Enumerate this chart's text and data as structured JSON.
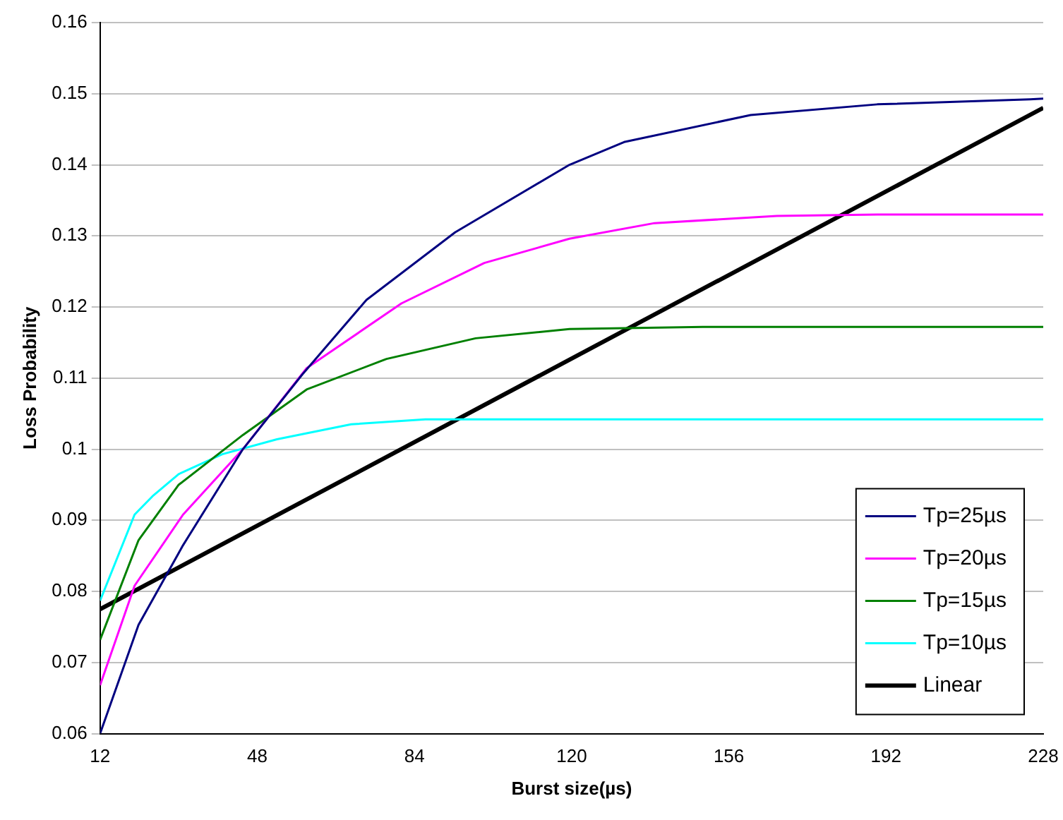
{
  "chart_data": {
    "type": "line",
    "xlabel": "Burst size(µs)",
    "ylabel": "Loss Probability",
    "xlim": [
      12,
      228
    ],
    "xticks": [
      12,
      48,
      84,
      120,
      156,
      192,
      228
    ],
    "ylim": [
      0.06,
      0.16
    ],
    "yticks": [
      0.06,
      0.07,
      0.08,
      0.09,
      0.1,
      0.11,
      0.12,
      0.13,
      0.14,
      0.15,
      0.16
    ],
    "grid": "y",
    "legend": "bottom right",
    "marker": "none",
    "line_style": "solid",
    "series": [
      {
        "name": "Tp=25µs",
        "color": "#000080",
        "x": [
          12,
          20.8,
          31,
          44.7,
          58.3,
          73,
          93.3,
          119.5,
          132,
          161,
          190,
          225,
          228
        ],
        "values": [
          0.06,
          0.0753,
          0.0865,
          0.1,
          0.1105,
          0.121,
          0.1305,
          0.14,
          0.1432,
          0.147,
          0.1485,
          0.1492,
          0.1493
        ]
      },
      {
        "name": "Tp=20µs",
        "color": "#ff00ff",
        "x": [
          12,
          19.9,
          31,
          44.7,
          59.3,
          81,
          100,
          119.5,
          139,
          167,
          190,
          228
        ],
        "values": [
          0.0668,
          0.0808,
          0.0908,
          0.1,
          0.1114,
          0.1205,
          0.1262,
          0.1296,
          0.1318,
          0.1328,
          0.133,
          0.133
        ]
      },
      {
        "name": "Tp=15µs",
        "color": "#008000",
        "x": [
          12,
          20.8,
          30,
          44.7,
          59.3,
          77.6,
          98,
          119.5,
          150,
          190,
          228
        ],
        "values": [
          0.0732,
          0.0872,
          0.095,
          0.102,
          0.1084,
          0.1127,
          0.1156,
          0.1169,
          0.1172,
          0.1172,
          0.1172
        ]
      },
      {
        "name": "Tp=10µs",
        "color": "#00ffff",
        "x": [
          12,
          19.9,
          24.2,
          30,
          40,
          52.5,
          69.5,
          86.5,
          130,
          180,
          228
        ],
        "values": [
          0.0787,
          0.0908,
          0.0935,
          0.0965,
          0.0993,
          0.1014,
          0.1035,
          0.1042,
          0.1042,
          0.1042,
          0.1042
        ]
      },
      {
        "name": "Linear",
        "color": "#000000",
        "x": [
          12,
          228
        ],
        "values": [
          0.0775,
          0.148
        ]
      }
    ]
  }
}
